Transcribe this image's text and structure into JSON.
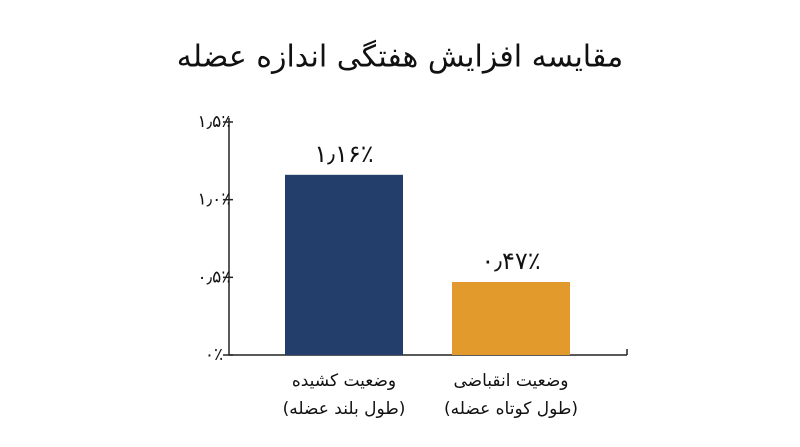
{
  "chart_data": {
    "type": "bar",
    "title": "مقایسه افزایش هفتگی اندازه عضله",
    "categories": [
      [
        "وضعیت کشیده",
        "(طول بلند عضله)"
      ],
      [
        "وضعیت انقباضی",
        "(طول کوتاه عضله)"
      ]
    ],
    "values": [
      1.16,
      0.47
    ],
    "value_labels": [
      "۱٫۱۶٪",
      "۰٫۴۷٪"
    ],
    "colors": [
      "#243e6b",
      "#e39a2d"
    ],
    "ylim": [
      0,
      1.5
    ],
    "yticks": [
      {
        "value": 0,
        "label": "۰٪"
      },
      {
        "value": 0.5,
        "label": "۰٫۵٪"
      },
      {
        "value": 1.0,
        "label": "۱٫۰٪"
      },
      {
        "value": 1.5,
        "label": "۱٫۵٪"
      }
    ],
    "grid": false
  }
}
